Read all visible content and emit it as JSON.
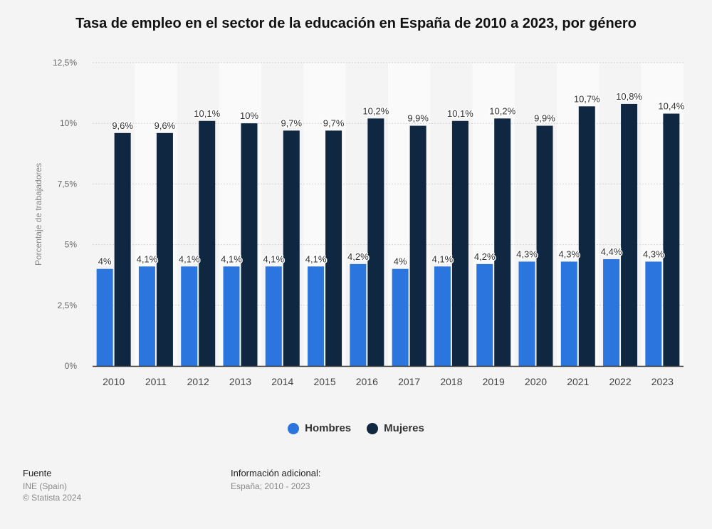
{
  "header": {
    "title": "Tasa de empleo en el sector de la educación en España de 2010 a 2023, por género"
  },
  "colors": {
    "hombres": "#2a75de",
    "mujeres": "#0f2740",
    "band": "#fafafa",
    "grid": "#d4d4d4",
    "axis": "#333333"
  },
  "chart_data": {
    "type": "bar",
    "title": "Tasa de empleo en el sector de la educación en España de 2010 a 2023, por género",
    "xlabel": "",
    "ylabel": "Porcentaje de trabajadores",
    "ylim": [
      0,
      12.5
    ],
    "yticks": [
      0,
      2.5,
      5,
      7.5,
      10,
      12.5
    ],
    "ytick_labels": [
      "0%",
      "2,5%",
      "5%",
      "7,5%",
      "10%",
      "12,5%"
    ],
    "grid": true,
    "legend_position": "bottom-center",
    "categories": [
      "2010",
      "2011",
      "2012",
      "2013",
      "2014",
      "2015",
      "2016",
      "2017",
      "2018",
      "2019",
      "2020",
      "2021",
      "2022",
      "2023"
    ],
    "series": [
      {
        "name": "Hombres",
        "values": [
          4,
          4.1,
          4.1,
          4.1,
          4.1,
          4.1,
          4.2,
          4,
          4.1,
          4.2,
          4.3,
          4.3,
          4.4,
          4.3
        ],
        "labels": [
          "4%",
          "4,1%",
          "4,1%",
          "4,1%",
          "4,1%",
          "4,1%",
          "4,2%",
          "4%",
          "4,1%",
          "4,2%",
          "4,3%",
          "4,3%",
          "4,4%",
          "4,3%"
        ]
      },
      {
        "name": "Mujeres",
        "values": [
          9.6,
          9.6,
          10.1,
          10,
          9.7,
          9.7,
          10.2,
          9.9,
          10.1,
          10.2,
          9.9,
          10.7,
          10.8,
          10.4
        ],
        "labels": [
          "9,6%",
          "9,6%",
          "10,1%",
          "10%",
          "9,7%",
          "9,7%",
          "10,2%",
          "9,9%",
          "10,1%",
          "10,2%",
          "9,9%",
          "10,7%",
          "10,8%",
          "10,4%"
        ]
      }
    ]
  },
  "legend": {
    "items": [
      {
        "label": "Hombres"
      },
      {
        "label": "Mujeres"
      }
    ]
  },
  "footer": {
    "source_heading": "Fuente",
    "source_lines": [
      "INE (Spain)",
      "© Statista 2024"
    ],
    "info_heading": "Información adicional:",
    "info_lines": [
      "España; 2010 - 2023"
    ]
  }
}
